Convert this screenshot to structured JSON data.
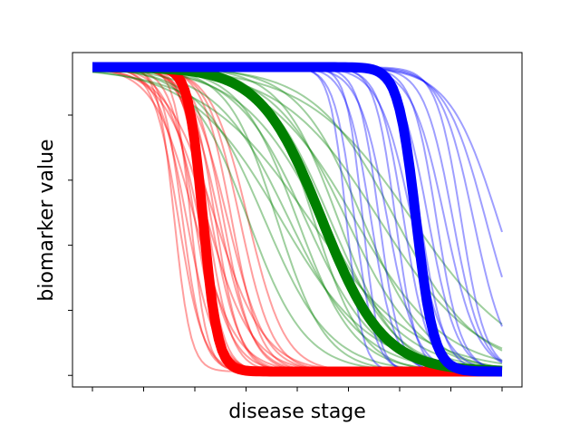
{
  "chart_data": {
    "type": "line",
    "title": "",
    "xlabel": "disease stage",
    "ylabel": "biomarker value",
    "x_tick_labels": [],
    "y_tick_labels": [],
    "xlim": [
      0,
      1
    ],
    "ylim": [
      0,
      1
    ],
    "grid": false,
    "legend": "none",
    "curve_form": "y = 1 - 1/(1 + exp(-(x - center)/scale))",
    "x_ticks": [
      0,
      0.125,
      0.25,
      0.375,
      0.5,
      0.625,
      0.75,
      0.875,
      1.0
    ],
    "y_ticks": [
      0.03,
      0.23,
      0.43,
      0.63,
      0.83
    ],
    "series": [
      {
        "color": "#ff0000",
        "mean": {
          "center": 0.27,
          "scale": 0.018
        },
        "samples": [
          {
            "center": 0.2,
            "scale": 0.02
          },
          {
            "center": 0.21,
            "scale": 0.03
          },
          {
            "center": 0.22,
            "scale": 0.025
          },
          {
            "center": 0.23,
            "scale": 0.035
          },
          {
            "center": 0.24,
            "scale": 0.02
          },
          {
            "center": 0.25,
            "scale": 0.03
          },
          {
            "center": 0.26,
            "scale": 0.04
          },
          {
            "center": 0.27,
            "scale": 0.025
          },
          {
            "center": 0.28,
            "scale": 0.03
          },
          {
            "center": 0.29,
            "scale": 0.035
          },
          {
            "center": 0.3,
            "scale": 0.03
          },
          {
            "center": 0.31,
            "scale": 0.04
          },
          {
            "center": 0.32,
            "scale": 0.035
          },
          {
            "center": 0.33,
            "scale": 0.045
          },
          {
            "center": 0.34,
            "scale": 0.035
          },
          {
            "center": 0.36,
            "scale": 0.04
          },
          {
            "center": 0.38,
            "scale": 0.045
          },
          {
            "center": 0.25,
            "scale": 0.05
          },
          {
            "center": 0.28,
            "scale": 0.055
          },
          {
            "center": 0.3,
            "scale": 0.06
          }
        ]
      },
      {
        "color": "#008000",
        "mean": {
          "center": 0.56,
          "scale": 0.075
        },
        "samples": [
          {
            "center": 0.38,
            "scale": 0.07
          },
          {
            "center": 0.42,
            "scale": 0.08
          },
          {
            "center": 0.45,
            "scale": 0.06
          },
          {
            "center": 0.48,
            "scale": 0.09
          },
          {
            "center": 0.5,
            "scale": 0.07
          },
          {
            "center": 0.52,
            "scale": 0.085
          },
          {
            "center": 0.54,
            "scale": 0.06
          },
          {
            "center": 0.56,
            "scale": 0.1
          },
          {
            "center": 0.58,
            "scale": 0.08
          },
          {
            "center": 0.6,
            "scale": 0.07
          },
          {
            "center": 0.62,
            "scale": 0.09
          },
          {
            "center": 0.64,
            "scale": 0.11
          },
          {
            "center": 0.66,
            "scale": 0.08
          },
          {
            "center": 0.7,
            "scale": 0.12
          },
          {
            "center": 0.74,
            "scale": 0.1
          },
          {
            "center": 0.78,
            "scale": 0.13
          },
          {
            "center": 0.46,
            "scale": 0.11
          },
          {
            "center": 0.53,
            "scale": 0.13
          }
        ]
      },
      {
        "color": "#0000ff",
        "mean": {
          "center": 0.79,
          "scale": 0.022
        },
        "samples": [
          {
            "center": 0.62,
            "scale": 0.02
          },
          {
            "center": 0.64,
            "scale": 0.025
          },
          {
            "center": 0.66,
            "scale": 0.02
          },
          {
            "center": 0.68,
            "scale": 0.03
          },
          {
            "center": 0.7,
            "scale": 0.025
          },
          {
            "center": 0.72,
            "scale": 0.035
          },
          {
            "center": 0.74,
            "scale": 0.025
          },
          {
            "center": 0.76,
            "scale": 0.03
          },
          {
            "center": 0.78,
            "scale": 0.04
          },
          {
            "center": 0.8,
            "scale": 0.03
          },
          {
            "center": 0.82,
            "scale": 0.035
          },
          {
            "center": 0.84,
            "scale": 0.03
          },
          {
            "center": 0.86,
            "scale": 0.04
          },
          {
            "center": 0.88,
            "scale": 0.035
          },
          {
            "center": 0.9,
            "scale": 0.03
          },
          {
            "center": 0.93,
            "scale": 0.04
          },
          {
            "center": 0.96,
            "scale": 0.05
          },
          {
            "center": 0.99,
            "scale": 0.06
          }
        ]
      }
    ]
  }
}
